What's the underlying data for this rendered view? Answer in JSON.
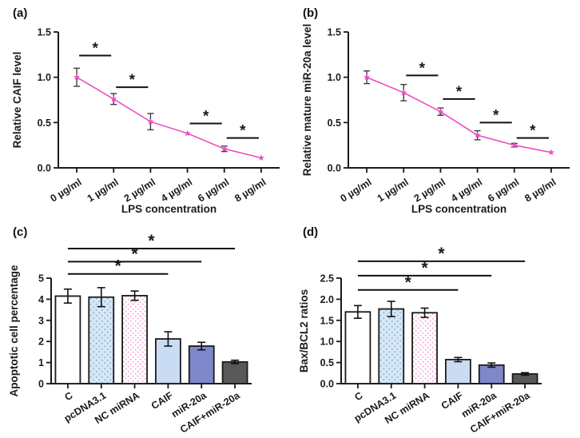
{
  "figure": {
    "background": "#ffffff",
    "axis_color": "#1a1a1a",
    "sig_color": "#111111",
    "pattern_colors": {
      "blue_bg": "#d9e8f7",
      "blue_fg": "#9fc3e4",
      "pink_bg": "#ffffff",
      "pink_fg": "#f0a3cf"
    }
  },
  "chart_data": [
    {
      "panel_label": "(a)",
      "type": "line",
      "title": "",
      "xlabel": "LPS concentration",
      "ylabel": "Relative CAIF level",
      "categories": [
        "0 µg/ml",
        "1 µg/ml",
        "2 µg/ml",
        "4 µg/ml",
        "6 µg/ml",
        "8 µg/ml"
      ],
      "values": [
        1.0,
        0.76,
        0.51,
        0.38,
        0.21,
        0.11
      ],
      "errors": [
        0.1,
        0.06,
        0.09,
        0,
        0.03,
        0
      ],
      "ylim": [
        0,
        1.5
      ],
      "yticks": [
        0,
        0.5,
        1,
        1.5
      ],
      "ytick_labels": [
        "0.0",
        "0.5",
        "1.0",
        "1.5"
      ],
      "line_color": "#ee4ec2",
      "error_color": "#3d3d3d",
      "sig_bars": [
        {
          "from": 0,
          "to": 1,
          "y": 1.24,
          "label": "*"
        },
        {
          "from": 1,
          "to": 2,
          "y": 0.89,
          "label": "*"
        },
        {
          "from": 3,
          "to": 4,
          "y": 0.49,
          "label": "*"
        },
        {
          "from": 4,
          "to": 5,
          "y": 0.33,
          "label": "*"
        }
      ]
    },
    {
      "panel_label": "(b)",
      "type": "line",
      "title": "",
      "xlabel": "LPS concentration",
      "ylabel": "Relative mature miR-20a level",
      "categories": [
        "0 µg/ml",
        "1 µg/ml",
        "2 µg/ml",
        "4 µg/ml",
        "6 µg/ml",
        "8 µg/ml"
      ],
      "values": [
        1.0,
        0.83,
        0.62,
        0.36,
        0.25,
        0.17
      ],
      "errors": [
        0.07,
        0.09,
        0.04,
        0.05,
        0.02,
        0
      ],
      "ylim": [
        0,
        1.5
      ],
      "yticks": [
        0,
        0.5,
        1,
        1.5
      ],
      "ytick_labels": [
        "0.0",
        "0.5",
        "1.0",
        "1.5"
      ],
      "line_color": "#ee4ec2",
      "error_color": "#3d3d3d",
      "sig_bars": [
        {
          "from": 1,
          "to": 2,
          "y": 1.02,
          "label": "*"
        },
        {
          "from": 2,
          "to": 3,
          "y": 0.76,
          "label": "*"
        },
        {
          "from": 3,
          "to": 4,
          "y": 0.5,
          "label": "*"
        },
        {
          "from": 4,
          "to": 5,
          "y": 0.33,
          "label": "*"
        }
      ]
    },
    {
      "panel_label": "(c)",
      "type": "bar",
      "title": "",
      "xlabel": "",
      "ylabel": "Apoptotic cell percentage",
      "categories": [
        "C",
        "pcDNA3.1",
        "NC miRNA",
        "CAIF",
        "miR-20a",
        "CAIF+miR-20a"
      ],
      "values": [
        4.15,
        4.1,
        4.17,
        2.12,
        1.78,
        1.03
      ],
      "errors": [
        0.33,
        0.45,
        0.22,
        0.34,
        0.18,
        0.08
      ],
      "ylim": [
        0,
        5
      ],
      "yticks": [
        0,
        1,
        2,
        3,
        4,
        5
      ],
      "ytick_labels": [
        "0",
        "1",
        "2",
        "3",
        "4",
        "5"
      ],
      "bar_border": "#1a1a1a",
      "bar_fills": [
        "#ffffff",
        "pattern-blue",
        "pattern-pink",
        "#c9dcf4",
        "#7e88ca",
        "#58585a"
      ],
      "error_color": "#111111",
      "sig_bars": [
        {
          "from": 0,
          "to": 3,
          "y": 5.2,
          "label": "*"
        },
        {
          "from": 0,
          "to": 4,
          "y": 5.78,
          "label": "*"
        },
        {
          "from": 0,
          "to": 5,
          "y": 6.4,
          "label": "*"
        }
      ]
    },
    {
      "panel_label": "(d)",
      "type": "bar",
      "title": "",
      "xlabel": "",
      "ylabel": "Bax/BCL2 ratios",
      "categories": [
        "C",
        "pcDNA3.1",
        "NC miRNA",
        "CAIF",
        "miR-20a",
        "CAIF+miR-20a"
      ],
      "values": [
        1.7,
        1.77,
        1.68,
        0.57,
        0.44,
        0.23
      ],
      "errors": [
        0.15,
        0.18,
        0.11,
        0.05,
        0.05,
        0.03
      ],
      "ylim": [
        0,
        2.5
      ],
      "yticks": [
        0,
        0.5,
        1,
        1.5,
        2,
        2.5
      ],
      "ytick_labels": [
        "0.0",
        "0.5",
        "1.0",
        "1.5",
        "2.0",
        "2.5"
      ],
      "bar_border": "#1a1a1a",
      "bar_fills": [
        "#ffffff",
        "pattern-blue",
        "pattern-pink",
        "#c9dcf4",
        "#7e88ca",
        "#58585a"
      ],
      "error_color": "#111111",
      "sig_bars": [
        {
          "from": 0,
          "to": 3,
          "y": 2.22,
          "label": "*"
        },
        {
          "from": 0,
          "to": 4,
          "y": 2.56,
          "label": "*"
        },
        {
          "from": 0,
          "to": 5,
          "y": 2.9,
          "label": "*"
        }
      ]
    }
  ]
}
